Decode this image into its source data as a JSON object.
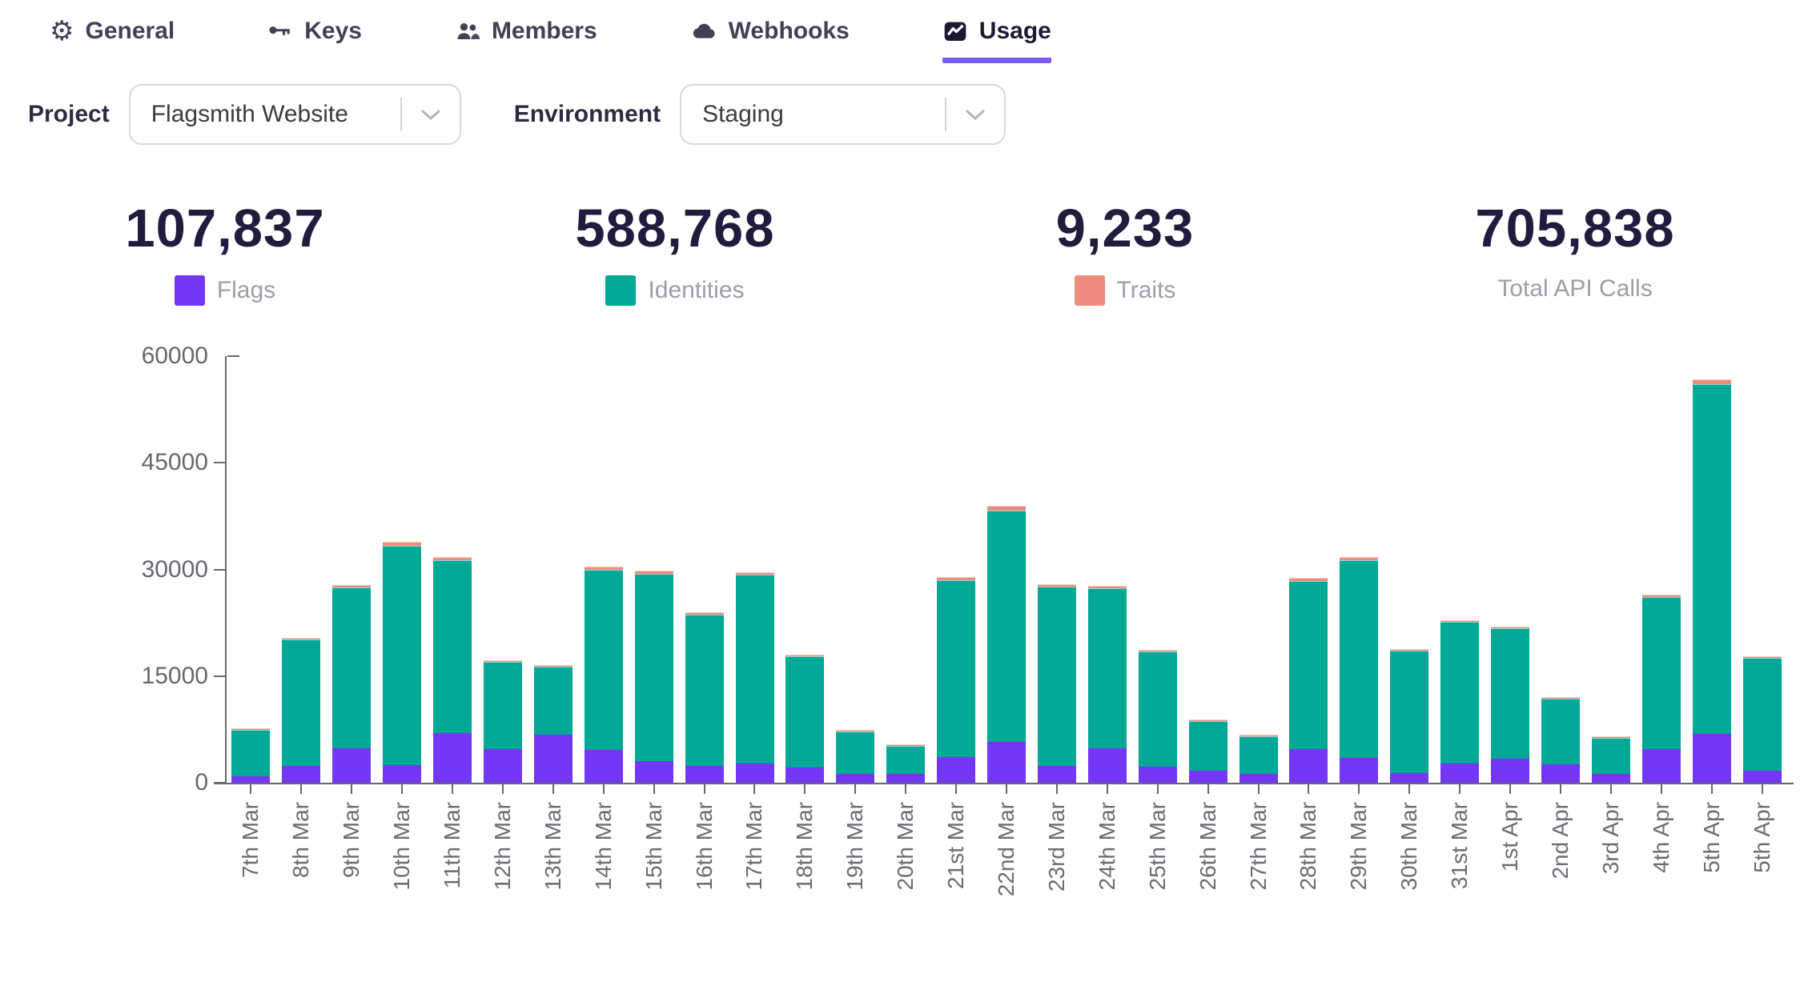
{
  "tabs": [
    {
      "label": "General",
      "icon": "gear-icon",
      "active": false
    },
    {
      "label": "Keys",
      "icon": "key-icon",
      "active": false
    },
    {
      "label": "Members",
      "icon": "members-icon",
      "active": false
    },
    {
      "label": "Webhooks",
      "icon": "cloud-icon",
      "active": false
    },
    {
      "label": "Usage",
      "icon": "usage-chart-icon",
      "active": true
    }
  ],
  "filters": {
    "project_label": "Project",
    "project_value": "Flagsmith Website",
    "environment_label": "Environment",
    "environment_value": "Staging"
  },
  "stats": [
    {
      "value": "107,837",
      "legend": "Flags",
      "color": "#7437f8"
    },
    {
      "value": "588,768",
      "legend": "Identities",
      "color": "#00a896"
    },
    {
      "value": "9,233",
      "legend": "Traits",
      "color": "#f08c7d"
    },
    {
      "value": "705,838",
      "legend": "Total API Calls",
      "color": null
    }
  ],
  "colors": {
    "flags_purple": "#7437f8",
    "identities_teal": "#00a896",
    "traits_salmon": "#f08c7d",
    "active_tab_underline": "#7c5bf2",
    "stat_number_text": "#1f1d3d",
    "axis_text": "#65686e",
    "legend_text": "#98a0ab"
  },
  "chart_data": {
    "type": "bar",
    "stacked": true,
    "title": "",
    "xlabel": "",
    "ylabel": "",
    "ylim": [
      0,
      60000
    ],
    "yticks": [
      0,
      15000,
      30000,
      45000,
      60000
    ],
    "grid": false,
    "legend_position": "top-stats-row",
    "categories": [
      "7th Mar",
      "8th Mar",
      "9th Mar",
      "10th Mar",
      "11th Mar",
      "12th Mar",
      "13th Mar",
      "14th Mar",
      "15th Mar",
      "16th Mar",
      "17th Mar",
      "18th Mar",
      "19th Mar",
      "20th Mar",
      "21st Mar",
      "22nd Mar",
      "23rd Mar",
      "24th Mar",
      "25th Mar",
      "26th Mar",
      "27th Mar",
      "28th Mar",
      "29th Mar",
      "30th Mar",
      "31st Mar",
      "1st Apr",
      "2nd Apr",
      "3rd Apr",
      "4th Apr",
      "5th Apr",
      "5th Apr"
    ],
    "series": [
      {
        "name": "Flags",
        "color": "#7437f8",
        "values": [
          900,
          2400,
          4900,
          2500,
          7000,
          4700,
          6800,
          4600,
          3000,
          2400,
          2700,
          2100,
          1200,
          1200,
          3600,
          5700,
          2400,
          4900,
          2300,
          1700,
          1300,
          4700,
          3550,
          1400,
          2700,
          3400,
          2550,
          1200,
          4700,
          6900,
          1700
        ]
      },
      {
        "name": "Identities",
        "color": "#00a896",
        "values": [
          6500,
          17750,
          22600,
          30800,
          24300,
          12250,
          9500,
          25400,
          26400,
          21300,
          26550,
          15700,
          5950,
          3950,
          24900,
          32550,
          25200,
          22500,
          16200,
          6950,
          5250,
          23700,
          27700,
          17150,
          19950,
          18350,
          9250,
          5050,
          21400,
          49150,
          15850
        ]
      },
      {
        "name": "Traits",
        "color": "#f08c7d",
        "values": [
          100,
          250,
          300,
          600,
          500,
          150,
          100,
          400,
          400,
          300,
          350,
          200,
          50,
          50,
          400,
          650,
          300,
          300,
          200,
          50,
          50,
          400,
          450,
          150,
          250,
          150,
          100,
          50,
          300,
          650,
          250
        ]
      }
    ]
  }
}
